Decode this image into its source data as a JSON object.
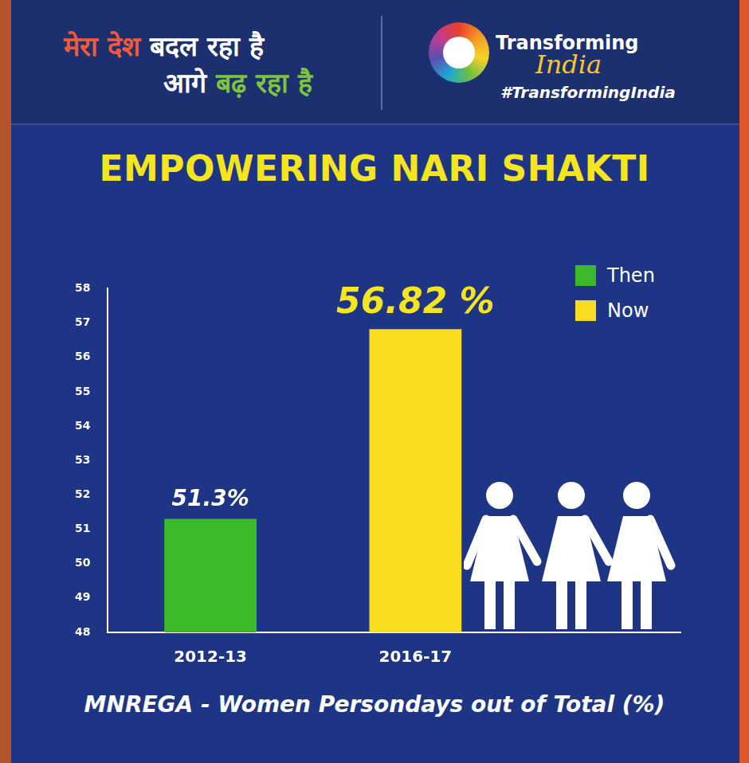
{
  "header": {
    "line1": [
      "मेरा देश",
      "बदल रहा है"
    ],
    "line2": [
      "आगे",
      "बढ़ रहा है"
    ]
  },
  "logo": {
    "name": "Transforming",
    "script": "India",
    "hashtag": "#TransformingIndia"
  },
  "chart_data": {
    "type": "bar",
    "title": "EMPOWERING NARI SHAKTI",
    "xlabel": "MNREGA - Women Persondays out of Total (%)",
    "categories": [
      "2012-13",
      "2016-17"
    ],
    "series": [
      {
        "name": "Then",
        "color": "#3cb92b",
        "values": [
          51.3,
          null
        ],
        "value_labels": [
          "51.3%",
          null
        ]
      },
      {
        "name": "Now",
        "color": "#f7dc20",
        "values": [
          null,
          56.82
        ],
        "value_labels": [
          null,
          "56.82 %"
        ]
      }
    ],
    "ylim": [
      48,
      58
    ],
    "yticks": [
      48,
      49,
      50,
      51,
      52,
      53,
      54,
      55,
      56,
      57,
      58
    ],
    "grid": false,
    "legend": "upper right",
    "data_labels": true
  }
}
